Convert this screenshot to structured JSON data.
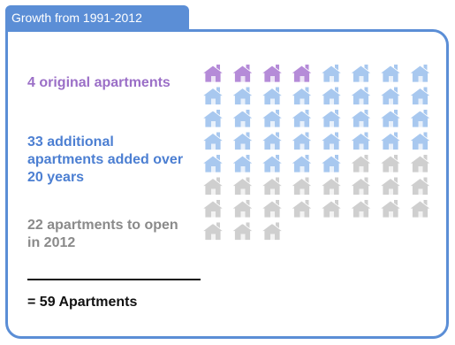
{
  "header": {
    "title": "Growth from 1991-2012"
  },
  "legend": {
    "original": "4 original apartments",
    "added": "33 additional apartments added over 20 years",
    "upcoming": "22 apartments to open in 2012",
    "total": "= 59 Apartments"
  },
  "chart_data": {
    "type": "pictogram",
    "categories": [
      "original",
      "added",
      "upcoming"
    ],
    "values": [
      4,
      33,
      22
    ],
    "total": 59,
    "columns": 8,
    "colors": {
      "original": "#b58bd8",
      "added": "#a8c8ef",
      "upcoming": "#cfcfcf"
    },
    "icon": "house-icon"
  }
}
